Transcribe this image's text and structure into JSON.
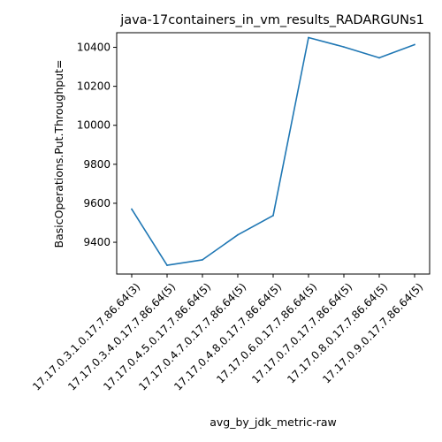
{
  "chart_data": {
    "type": "line",
    "title": "java-17containers_in_vm_results_RADARGUNs1",
    "xlabel": "avg_by_jdk_metric-raw",
    "ylabel": "BasicOperations.Put.Throughput=",
    "categories": [
      "17.17.0.3.1.0.17.7.86.64(3)",
      "17.17.0.3.4.0.17.7.86.64(5)",
      "17.17.0.4.5.0.17.7.86.64(5)",
      "17.17.0.4.7.0.17.7.86.64(5)",
      "17.17.0.4.8.0.17.7.86.64(5)",
      "17.17.0.6.0.17.7.86.64(5)",
      "17.17.0.7.0.17.7.86.64(5)",
      "17.17.0.8.0.17.7.86.64(5)",
      "17.17.0.9.0.17.7.86.64(5)"
    ],
    "series": [
      {
        "values": [
          9570,
          9282,
          9310,
          9438,
          9537,
          10450,
          10402,
          10346,
          10414
        ],
        "color": "#1f77b4"
      }
    ],
    "ylim": [
      9237,
      10475
    ],
    "yticks": [
      9400,
      9600,
      9800,
      10000,
      10200,
      10400
    ],
    "grid": false,
    "legend": "none"
  }
}
